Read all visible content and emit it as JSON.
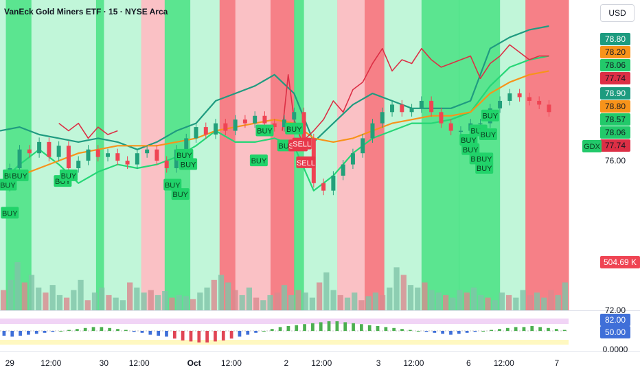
{
  "header": {
    "title": "VanEck Gold Miners ETF · 15 · NYSE Arca",
    "currency": "USD",
    "symbol_tag": "GDX"
  },
  "colors": {
    "zone_green": "#3ee07c",
    "zone_light": "#b6f5d2",
    "zone_red": "#f56a72",
    "zone_pink": "#f9b6bb",
    "upper_band": "#1f9b80",
    "lower_band": "#26d676",
    "sma": "#f7931a",
    "red_line": "#dc2f45",
    "buy": "#21d36a",
    "sell": "#e8384a",
    "candle_up": "#22a07a",
    "candle_down": "#ef4453"
  },
  "chart_data": [
    {
      "type": "candlestick",
      "title": "VanEck Gold Miners ETF · 15 · NYSE Arca",
      "x_tick_labels": [
        "29",
        "12:00",
        "30",
        "12:00",
        "Oct",
        "12:00",
        "2",
        "12:00",
        "3",
        "12:00",
        "6",
        "12:00",
        "7"
      ],
      "y_axis_labels": [
        "76.00",
        "72.00"
      ],
      "ylim": [
        72,
        79.6
      ],
      "price_badges": [
        {
          "value": "78.80",
          "color": "#1d9b7f"
        },
        {
          "value": "78.20",
          "color": "#f7931a"
        },
        {
          "value": "78.06",
          "color": "#22c96a"
        },
        {
          "value": "77.74",
          "color": "#dc2f45"
        },
        {
          "value": "78.90",
          "color": "#1d9b7f"
        },
        {
          "value": "78.80",
          "color": "#f7931a"
        },
        {
          "value": "78.57",
          "color": "#22c96a"
        },
        {
          "value": "78.06",
          "color": "#22c96a"
        },
        {
          "value": "77.74",
          "color": "#dc2f45"
        },
        {
          "value": "504.69 K",
          "color": "#ef4453"
        }
      ],
      "buy_label": "BUY",
      "sell_label": "SELL",
      "signal_positions": [
        {
          "label": "BUY",
          "t": 0.6
        },
        {
          "label": "BUY",
          "t": 1.0
        },
        {
          "label": "BUY",
          "t": 0.5
        },
        {
          "label": "BUY",
          "t": 0.4
        },
        {
          "label": "BUY",
          "t": 3.2
        },
        {
          "label": "BUY",
          "t": 3.5
        },
        {
          "label": "BUY",
          "t": 9.6
        },
        {
          "label": "BUY",
          "t": 9.2
        },
        {
          "label": "BUY",
          "t": 9.4
        },
        {
          "label": "BUY",
          "t": 8.8
        },
        {
          "label": "BUY",
          "t": 13.5
        },
        {
          "label": "BUY",
          "t": 14.6
        },
        {
          "label": "BUY",
          "t": 13.2
        },
        {
          "label": "BUY",
          "t": 15.0
        },
        {
          "label": "BUY",
          "t": 24.4
        },
        {
          "label": "BUY",
          "t": 25.0
        },
        {
          "label": "BUY",
          "t": 24.0
        },
        {
          "label": "BUY",
          "t": 24.7
        },
        {
          "label": "BUY",
          "t": 23.9
        },
        {
          "label": "BUY",
          "t": 24.7
        },
        {
          "label": "BUY",
          "t": 24.4
        },
        {
          "label": "BUY",
          "t": 24.9
        },
        {
          "label": "SELL",
          "t": 15.2
        },
        {
          "label": "SELL",
          "t": 15.4
        },
        {
          "label": "SELL",
          "t": 15.6
        }
      ],
      "zones": [
        {
          "from": 0,
          "to": 0.3,
          "kind": "light"
        },
        {
          "from": 0.3,
          "to": 1.6,
          "kind": "green"
        },
        {
          "from": 1.6,
          "to": 4.9,
          "kind": "light"
        },
        {
          "from": 4.9,
          "to": 5.3,
          "kind": "green"
        },
        {
          "from": 5.3,
          "to": 7.2,
          "kind": "light"
        },
        {
          "from": 7.2,
          "to": 8.4,
          "kind": "pink"
        },
        {
          "from": 8.4,
          "to": 9.7,
          "kind": "green"
        },
        {
          "from": 9.7,
          "to": 11.2,
          "kind": "light"
        },
        {
          "from": 11.2,
          "to": 12.0,
          "kind": "red"
        },
        {
          "from": 12.0,
          "to": 13.8,
          "kind": "pink"
        },
        {
          "from": 13.8,
          "to": 15.0,
          "kind": "red"
        },
        {
          "from": 15.0,
          "to": 15.5,
          "kind": "green"
        },
        {
          "from": 15.5,
          "to": 17.2,
          "kind": "light"
        },
        {
          "from": 17.2,
          "to": 18.6,
          "kind": "pink"
        },
        {
          "from": 18.6,
          "to": 19.6,
          "kind": "red"
        },
        {
          "from": 19.6,
          "to": 21.5,
          "kind": "light"
        },
        {
          "from": 21.5,
          "to": 23.4,
          "kind": "green"
        },
        {
          "from": 23.4,
          "to": 25.5,
          "kind": "green"
        },
        {
          "from": 25.5,
          "to": 26.8,
          "kind": "light"
        },
        {
          "from": 26.8,
          "to": 29.0,
          "kind": "red"
        }
      ],
      "series": [
        {
          "name": "price",
          "color": "#26a69a",
          "x": [
            0,
            0.5,
            1,
            1.5,
            2,
            2.5,
            3,
            3.5,
            4,
            4.5,
            5,
            5.5,
            6,
            6.5,
            7,
            7.5,
            8,
            8.5,
            9,
            9.5,
            10,
            10.5,
            11,
            11.5,
            12,
            12.5,
            13,
            13.5,
            14,
            14.5,
            15,
            15.5,
            16,
            16.5,
            17,
            17.5,
            18,
            18.5,
            19,
            19.5,
            20,
            20.5,
            21,
            21.5,
            22,
            22.5,
            23,
            23.5,
            24,
            24.5,
            25,
            25.5,
            26,
            26.5,
            27,
            27.5,
            28
          ],
          "values": [
            75.3,
            75.8,
            76.3,
            76.2,
            76.5,
            76.1,
            76.4,
            75.8,
            76.0,
            76.3,
            76.1,
            76.2,
            76.0,
            75.9,
            76.2,
            76.3,
            76.0,
            75.8,
            76.3,
            76.6,
            76.9,
            76.7,
            77.0,
            76.8,
            77.1,
            77.0,
            77.2,
            77.0,
            76.9,
            77.1,
            77.3,
            76.6,
            75.4,
            75.2,
            75.6,
            75.9,
            76.2,
            76.6,
            77.0,
            77.3,
            77.5,
            77.3,
            77.4,
            77.6,
            77.3,
            77.0,
            76.8,
            76.8,
            77.0,
            77.0,
            77.4,
            77.6,
            77.8,
            77.7,
            77.6,
            77.5,
            77.3
          ]
        },
        {
          "name": "upper_band",
          "color": "#1f9b80",
          "x": [
            0,
            1,
            2,
            3,
            4,
            5,
            6,
            7,
            8,
            9,
            10,
            11,
            12,
            13,
            14,
            15,
            16,
            17,
            18,
            19,
            20,
            21,
            22,
            23,
            24,
            25,
            26,
            27,
            28
          ],
          "values": [
            76.8,
            76.9,
            76.7,
            76.6,
            76.5,
            76.6,
            76.5,
            76.3,
            76.5,
            76.8,
            77.0,
            77.6,
            77.8,
            78.0,
            78.3,
            77.8,
            76.5,
            77.0,
            77.5,
            77.8,
            77.6,
            77.4,
            77.4,
            77.4,
            77.6,
            79.0,
            79.3,
            79.5,
            79.6
          ]
        },
        {
          "name": "lower_band",
          "color": "#26d676",
          "x": [
            0,
            1,
            2,
            3,
            4,
            5,
            6,
            7,
            8,
            9,
            10,
            11,
            12,
            13,
            14,
            15,
            16,
            17,
            18,
            19,
            20,
            21,
            22,
            23,
            24,
            25,
            26,
            27,
            28
          ],
          "values": [
            75.4,
            75.9,
            76.3,
            75.9,
            75.4,
            75.7,
            75.9,
            75.8,
            75.9,
            76.1,
            76.4,
            76.8,
            76.5,
            76.5,
            76.6,
            76.4,
            75.2,
            75.6,
            76.2,
            76.6,
            76.8,
            77.0,
            77.0,
            77.1,
            77.3,
            78.0,
            78.5,
            78.7,
            78.8
          ]
        },
        {
          "name": "moving_average",
          "color": "#f7931a",
          "x": [
            0,
            1,
            2,
            3,
            4,
            5,
            6,
            7,
            8,
            9,
            10,
            11,
            12,
            13,
            14,
            15,
            16,
            17,
            18,
            19,
            20,
            21,
            22,
            23,
            24,
            25,
            26,
            27,
            28
          ],
          "values": [
            75.4,
            75.6,
            75.8,
            76.0,
            76.2,
            76.3,
            76.4,
            76.4,
            76.4,
            76.5,
            76.6,
            76.8,
            76.9,
            77.0,
            77.1,
            77.0,
            76.6,
            76.5,
            76.6,
            76.8,
            77.0,
            77.1,
            77.2,
            77.2,
            77.3,
            77.8,
            78.1,
            78.3,
            78.4
          ]
        },
        {
          "name": "red_line",
          "color": "#dc2f45",
          "x": [
            3,
            3.5,
            4,
            4.5,
            5,
            5.5,
            6
          ],
          "values": [
            77.0,
            76.8,
            77.0,
            76.6,
            76.9,
            76.7,
            76.8
          ]
        },
        {
          "name": "red_line_2",
          "color": "#dc2f45",
          "x": [
            14.4,
            14.7,
            15,
            15.4,
            16,
            16.5,
            17,
            17.5,
            18,
            18.5,
            19,
            19.5,
            20,
            20.5,
            21,
            21.5,
            22,
            22.5,
            23,
            23.5,
            24,
            24.5,
            25,
            25.5,
            26,
            26.5,
            27,
            27.5,
            28
          ],
          "values": [
            76.8,
            78.3,
            77.1,
            76.5,
            76.8,
            77.1,
            77.6,
            77.3,
            77.9,
            78.1,
            78.6,
            79.0,
            78.4,
            78.7,
            78.6,
            79.0,
            78.7,
            78.5,
            78.6,
            78.7,
            78.8,
            78.2,
            78.6,
            78.8,
            79.1,
            78.9,
            78.7,
            78.8,
            78.8
          ]
        }
      ],
      "volume": [
        40,
        60,
        95,
        55,
        70,
        45,
        35,
        50,
        30,
        25,
        40,
        60,
        20,
        35,
        45,
        30,
        25,
        20,
        55,
        45,
        35,
        40,
        30,
        38,
        25,
        30,
        28,
        22,
        35,
        45,
        60,
        70,
        55,
        40,
        30,
        45,
        25,
        20,
        30,
        35,
        50,
        30,
        40,
        35,
        25,
        55,
        75,
        40,
        30,
        25,
        35,
        20,
        28,
        35,
        30,
        45,
        85,
        70,
        50,
        45,
        55,
        40,
        35,
        30,
        25,
        40,
        35,
        45,
        30,
        25,
        20,
        35,
        30,
        25,
        40,
        30,
        35,
        25,
        40,
        30,
        55
      ],
      "oscillator": {
        "labels": [
          "82.00",
          "50.00",
          "0.0000"
        ],
        "histogram": [
          -5,
          -6,
          -5,
          -4,
          -3,
          -2,
          -1,
          0,
          1,
          2,
          3,
          4,
          4,
          3,
          2,
          1,
          -1,
          -2,
          -4,
          -5,
          -6,
          -8,
          -10,
          -11,
          -12,
          -12,
          -11,
          -10,
          -8,
          -6,
          -4,
          -2,
          0,
          2,
          4,
          5,
          6,
          7,
          8,
          9,
          10,
          10,
          9,
          8,
          7,
          6,
          5,
          4,
          3,
          2,
          1,
          0,
          -1,
          -2,
          -3,
          -4,
          -3,
          -2,
          -1,
          0,
          1,
          2,
          3,
          4,
          4,
          5,
          4,
          3,
          2,
          1
        ]
      }
    }
  ]
}
